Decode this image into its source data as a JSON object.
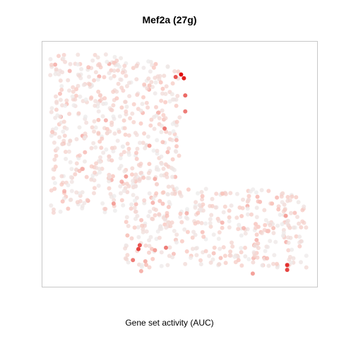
{
  "chart_data": {
    "type": "scatter",
    "title": "Mef2a (27g)",
    "xlabel": "Gene set activity (AUC)",
    "ylabel": "",
    "grid": false,
    "legend": "none",
    "axes_drawn": false,
    "color_scale": {
      "low": "#ececec",
      "mid": "#f8c4bc",
      "high": "#dd0000"
    },
    "note": "",
    "x_range": [
      0,
      100
    ],
    "y_range": [
      0,
      100
    ],
    "points_seed": 27,
    "n_background_points": 900,
    "highlight_points": [
      {
        "x": 50.5,
        "y": 86.5,
        "v": 1.0
      },
      {
        "x": 51.5,
        "y": 85.0,
        "v": 0.95
      },
      {
        "x": 48.5,
        "y": 85.5,
        "v": 0.8
      },
      {
        "x": 52.0,
        "y": 78.0,
        "v": 0.75
      },
      {
        "x": 52.0,
        "y": 71.5,
        "v": 0.7
      },
      {
        "x": 44.5,
        "y": 64.5,
        "v": 0.7
      },
      {
        "x": 39.0,
        "y": 57.5,
        "v": 0.6
      },
      {
        "x": 30.5,
        "y": 45.0,
        "v": 0.6
      },
      {
        "x": 41.0,
        "y": 44.0,
        "v": 0.55
      },
      {
        "x": 26.0,
        "y": 34.0,
        "v": 0.6
      },
      {
        "x": 35.5,
        "y": 17.0,
        "v": 0.8
      },
      {
        "x": 35.0,
        "y": 15.5,
        "v": 0.85
      },
      {
        "x": 45.0,
        "y": 16.0,
        "v": 0.7
      },
      {
        "x": 33.0,
        "y": 11.0,
        "v": 0.7
      },
      {
        "x": 36.0,
        "y": 6.5,
        "v": 0.55
      },
      {
        "x": 37.5,
        "y": 10.5,
        "v": 0.55
      },
      {
        "x": 41.0,
        "y": 15.0,
        "v": 0.6
      },
      {
        "x": 31.0,
        "y": 21.0,
        "v": 0.5
      },
      {
        "x": 88.5,
        "y": 29.0,
        "v": 0.6
      },
      {
        "x": 83.5,
        "y": 34.0,
        "v": 0.5
      },
      {
        "x": 89.0,
        "y": 9.0,
        "v": 0.9
      },
      {
        "x": 89.0,
        "y": 7.0,
        "v": 0.85
      },
      {
        "x": 76.5,
        "y": 5.5,
        "v": 0.6
      },
      {
        "x": 84.0,
        "y": 24.0,
        "v": 0.5
      },
      {
        "x": 65.5,
        "y": 38.0,
        "v": 0.5
      },
      {
        "x": 39.0,
        "y": 82.0,
        "v": 0.45
      },
      {
        "x": 20.5,
        "y": 68.0,
        "v": 0.5
      }
    ]
  }
}
